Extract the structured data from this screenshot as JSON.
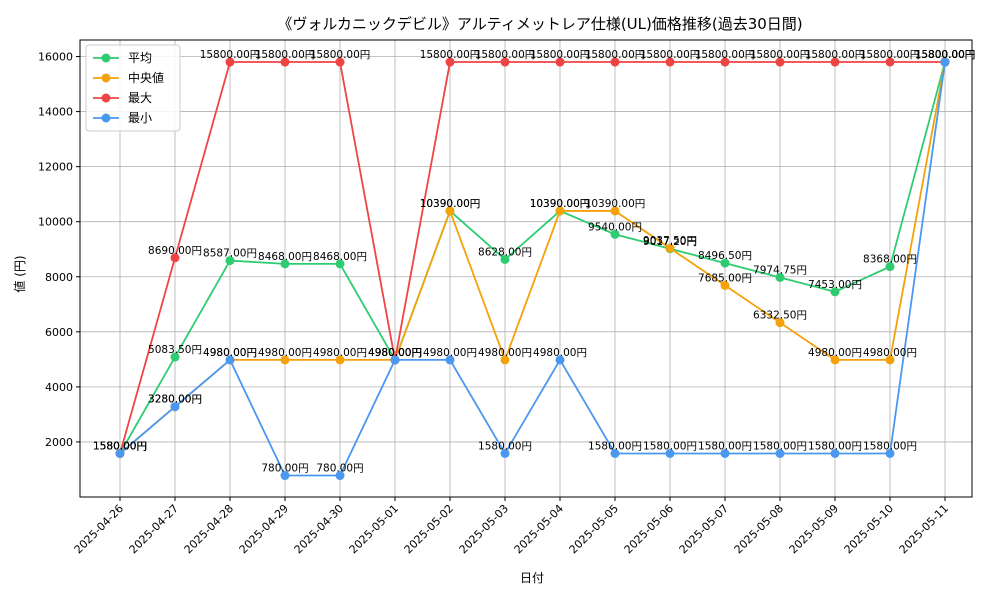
{
  "chart_data": {
    "type": "line",
    "title": "《ヴォルカニックデビル》アルティメットレア仕様(UL)価格推移(過去30日間)",
    "xlabel": "日付",
    "ylabel": "値 (円)",
    "ylim": [
      0,
      16600
    ],
    "yticks": [
      2000,
      4000,
      6000,
      8000,
      10000,
      12000,
      14000,
      16000
    ],
    "grid": true,
    "legend_position": "top-left",
    "label_suffix": "円",
    "categories": [
      "2025-04-26",
      "2025-04-27",
      "2025-04-28",
      "2025-04-29",
      "2025-04-30",
      "2025-05-01",
      "2025-05-02",
      "2025-05-03",
      "2025-05-04",
      "2025-05-05",
      "2025-05-06",
      "2025-05-07",
      "2025-05-08",
      "2025-05-09",
      "2025-05-10",
      "2025-05-11"
    ],
    "series": [
      {
        "name": "平均",
        "color": "#2ecc71",
        "values": [
          1580,
          5083.5,
          8587,
          8468,
          8468,
          4980,
          10390,
          8628,
          10390,
          9540,
          9017.2,
          8496.5,
          7974.75,
          7453,
          8368,
          15800
        ],
        "data_labels": [
          "1580.00円",
          "5083.50円",
          "8587.00円",
          "8468.00円",
          "8468.00円",
          "4980.00円",
          "10390.00円",
          "8628.00円",
          "10390.00円",
          "9540.00円",
          "9017.20円",
          "8496.50円",
          "7974.75円",
          "7453.00円",
          "8368.00円",
          "15800.00円"
        ]
      },
      {
        "name": "中央値",
        "color": "#f5a20a",
        "values": [
          1580,
          3280,
          4980,
          4980,
          4980,
          4980,
          10390,
          4980,
          10390,
          10390,
          9037.5,
          7685,
          6332.5,
          4980,
          4980,
          15800
        ],
        "data_labels": [
          "1580.00円",
          "3280.00円",
          "4980.00円",
          "4980.00円",
          "4980.00円",
          "4980.00円",
          "10390.00円",
          "4980.00円",
          "10390.00円",
          "10390.00円",
          "9037.50円",
          "7685.00円",
          "6332.50円",
          "4980.00円",
          "4980.00円",
          "15800.00円"
        ]
      },
      {
        "name": "最大",
        "color": "#ef4444",
        "values": [
          1580,
          8690,
          15800,
          15800,
          15800,
          4980,
          15800,
          15800,
          15800,
          15800,
          15800,
          15800,
          15800,
          15800,
          15800,
          15800
        ],
        "data_labels": [
          "1580.00円",
          "8690.00円",
          "15800.00円",
          "15800.00円",
          "15800.00円",
          "4980.00円",
          "15800.00円",
          "15800.00円",
          "15800.00円",
          "15800.00円",
          "15800.00円",
          "15800.00円",
          "15800.00円",
          "15800.00円",
          "15800.00円",
          "15800.00円"
        ]
      },
      {
        "name": "最小",
        "color": "#4a98f0",
        "values": [
          1580,
          3280,
          4980,
          780,
          780,
          4980,
          4980,
          1580,
          4980,
          1580,
          1580,
          1580,
          1580,
          1580,
          1580,
          15800
        ],
        "data_labels": [
          "1580.00円",
          "3280.00円",
          "4980.00円",
          "780.00円",
          "780.00円",
          "4980.00円",
          "4980.00円",
          "1580.00円",
          "4980.00円",
          "1580.00円",
          "1580.00円",
          "1580.00円",
          "1580.00円",
          "1580.00円",
          "1580.00円",
          "15800.00円"
        ]
      }
    ]
  }
}
